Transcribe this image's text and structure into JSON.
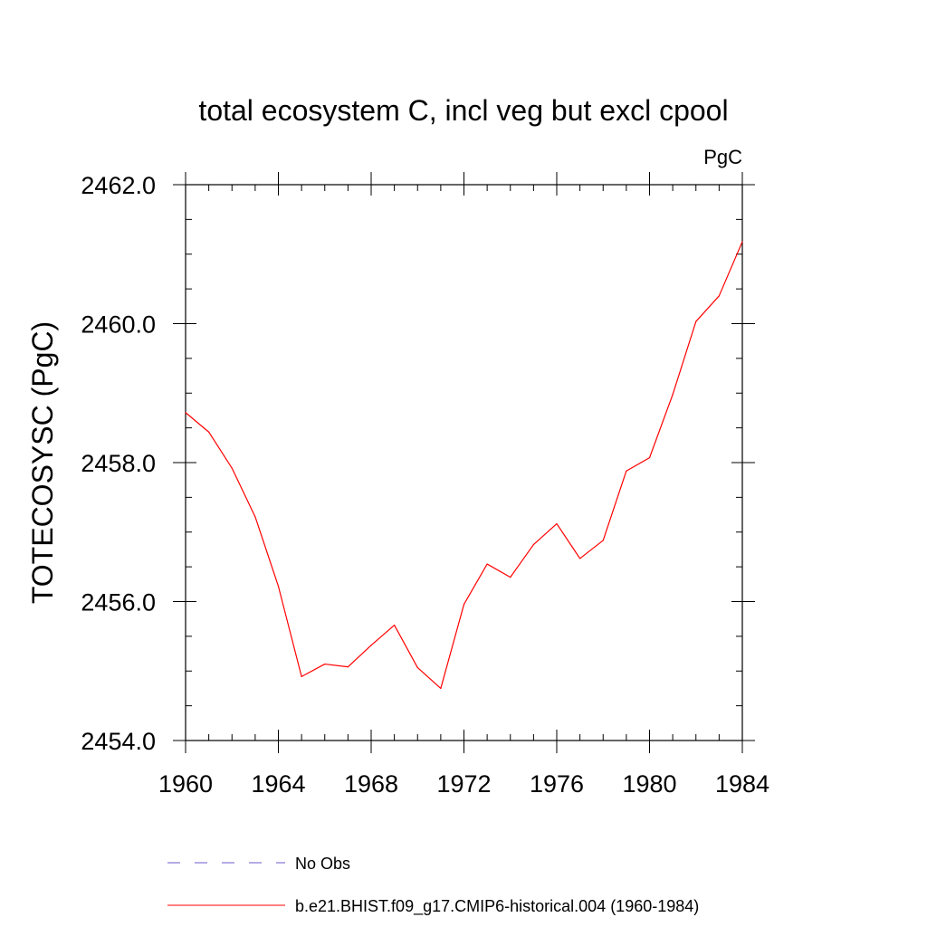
{
  "chart_data": {
    "type": "line",
    "title": "total ecosystem C, incl veg but excl cpool",
    "units_label": "PgC",
    "ylabel": "TOTECOSYSC  (PgC)",
    "xlabel": "",
    "xlim": [
      1960,
      1984
    ],
    "ylim": [
      2454.0,
      2462.0
    ],
    "x_ticks": [
      1960,
      1964,
      1968,
      1972,
      1976,
      1980,
      1984
    ],
    "x_tick_labels": [
      "1960",
      "1964",
      "1968",
      "1972",
      "1976",
      "1980",
      "1984"
    ],
    "y_ticks": [
      2454.0,
      2456.0,
      2458.0,
      2460.0,
      2462.0
    ],
    "y_tick_labels": [
      "2454.0",
      "2456.0",
      "2458.0",
      "2460.0",
      "2462.0"
    ],
    "x_minor_step": 1,
    "y_minor_step": 0.5,
    "grid": false,
    "legend_position": "bottom",
    "series": [
      {
        "name": "b.e21.BHIST.f09_g17.CMIP6-historical.004 (1960-1984)",
        "color": "#ff0000",
        "style": "solid",
        "x": [
          1960,
          1961,
          1962,
          1963,
          1964,
          1965,
          1966,
          1967,
          1968,
          1969,
          1970,
          1971,
          1972,
          1973,
          1974,
          1975,
          1976,
          1977,
          1978,
          1979,
          1980,
          1981,
          1982,
          1983,
          1984
        ],
        "values": [
          2458.72,
          2458.44,
          2457.92,
          2457.22,
          2456.22,
          2454.92,
          2455.1,
          2455.06,
          2455.37,
          2455.66,
          2455.05,
          2454.75,
          2455.96,
          2456.54,
          2456.35,
          2456.82,
          2457.12,
          2456.62,
          2456.88,
          2457.88,
          2458.07,
          2458.98,
          2460.03,
          2460.4,
          2461.18
        ]
      }
    ],
    "legend": [
      {
        "label": "No Obs",
        "color": "#6a5acd",
        "style": "dashed"
      },
      {
        "label": "b.e21.BHIST.f09_g17.CMIP6-historical.004 (1960-1984)",
        "color": "#ff0000",
        "style": "solid"
      }
    ]
  }
}
